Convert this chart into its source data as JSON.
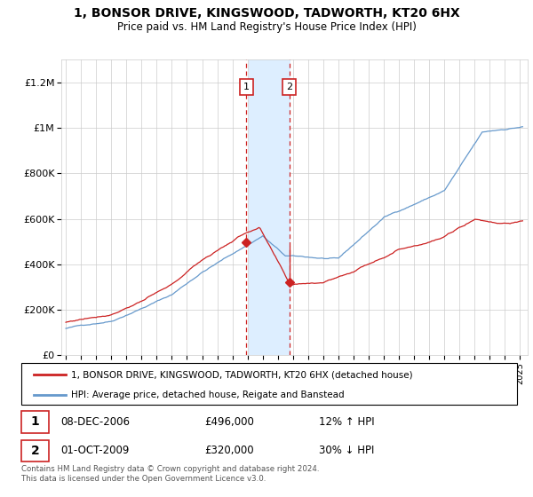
{
  "title": "1, BONSOR DRIVE, KINGSWOOD, TADWORTH, KT20 6HX",
  "subtitle": "Price paid vs. HM Land Registry's House Price Index (HPI)",
  "legend_line1": "1, BONSOR DRIVE, KINGSWOOD, TADWORTH, KT20 6HX (detached house)",
  "legend_line2": "HPI: Average price, detached house, Reigate and Banstead",
  "sale1_date": "08-DEC-2006",
  "sale1_price": "£496,000",
  "sale1_hpi": "12% ↑ HPI",
  "sale2_date": "01-OCT-2009",
  "sale2_price": "£320,000",
  "sale2_hpi": "30% ↓ HPI",
  "footer": "Contains HM Land Registry data © Crown copyright and database right 2024.\nThis data is licensed under the Open Government Licence v3.0.",
  "sale1_x": 2006.92,
  "sale1_y": 496000,
  "sale2_x": 2009.75,
  "sale2_y": 320000,
  "highlight_x1": 2007.1,
  "highlight_x2": 2009.85,
  "hpi_color": "#6699cc",
  "price_color": "#cc2222",
  "highlight_fill": "#ddeeff",
  "highlight_border": "#aabbcc",
  "background_color": "#ffffff",
  "ylim": [
    0,
    1300000
  ],
  "xlim_start": 1994.7,
  "xlim_end": 2025.5,
  "yticks": [
    0,
    200000,
    400000,
    600000,
    800000,
    1000000,
    1200000
  ],
  "ylabels": [
    "£0",
    "£200K",
    "£400K",
    "£600K",
    "£800K",
    "£1M",
    "£1.2M"
  ]
}
